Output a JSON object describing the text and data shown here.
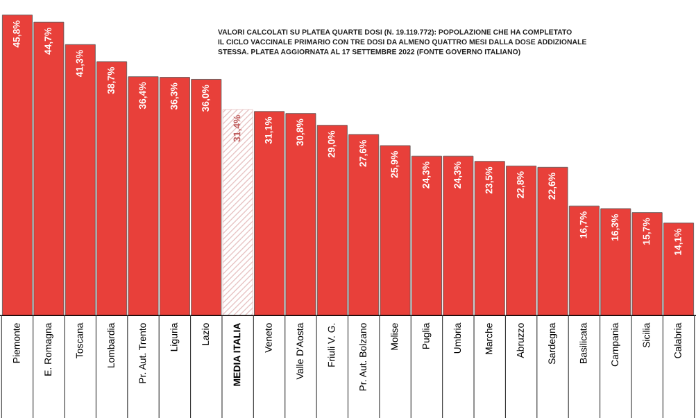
{
  "chart_data": {
    "type": "bar",
    "categories": [
      "Piemonte",
      "E. Romagna",
      "Toscana",
      "Lombardia",
      "Pr. Aut. Trento",
      "Liguria",
      "Lazio",
      "MEDIA ITALIA",
      "Veneto",
      "Valle D'Aosta",
      "Friuli V. G.",
      "Pr. Aut. Bolzano",
      "Molise",
      "Puglia",
      "Umbria",
      "Marche",
      "Abruzzo",
      "Sardegna",
      "Basilicata",
      "Campania",
      "Sicilia",
      "Calabria"
    ],
    "values": [
      45.8,
      44.7,
      41.3,
      38.7,
      36.4,
      36.3,
      36.0,
      31.4,
      31.1,
      30.8,
      29.0,
      27.6,
      25.9,
      24.3,
      24.3,
      23.5,
      22.8,
      22.6,
      16.7,
      16.3,
      15.7,
      14.1
    ],
    "value_labels": [
      "45,8%",
      "44,7%",
      "41,3%",
      "38,7%",
      "36,4%",
      "36,3%",
      "36,0%",
      "31,4%",
      "31,1%",
      "30,8%",
      "29,0%",
      "27,6%",
      "25,9%",
      "24,3%",
      "24,3%",
      "23,5%",
      "22,8%",
      "22,6%",
      "16,7%",
      "16,3%",
      "15,7%",
      "14,1%"
    ],
    "colors": [
      "#e8403a",
      "#e8403a",
      "#e8403a",
      "#e8403a",
      "#e8403a",
      "#e8403a",
      "#e8403a",
      "#e8c4c4",
      "#e8403a",
      "#e8403a",
      "#e8403a",
      "#e8403a",
      "#e8403a",
      "#e8403a",
      "#e8403a",
      "#e8403a",
      "#e8403a",
      "#e8403a",
      "#e8403a",
      "#e8403a",
      "#e8403a",
      "#e8403a"
    ],
    "annotations": [
      "VALORI CALCOLATI SU PLATEA QUARTE DOSI (N. 19.119.772): POPOLAZIONE CHE HA COMPLETATO\nIL CICLO VACCINALE PRIMARIO CON TRE DOSI DA ALMENO QUATTRO MESI DALLA DOSE ADDIZIONALE\nSTESSA. PLATEA AGGIORNATA AL 17 SETTEMBRE 2022 (FONTE GOVERNO ITALIANO)"
    ]
  }
}
